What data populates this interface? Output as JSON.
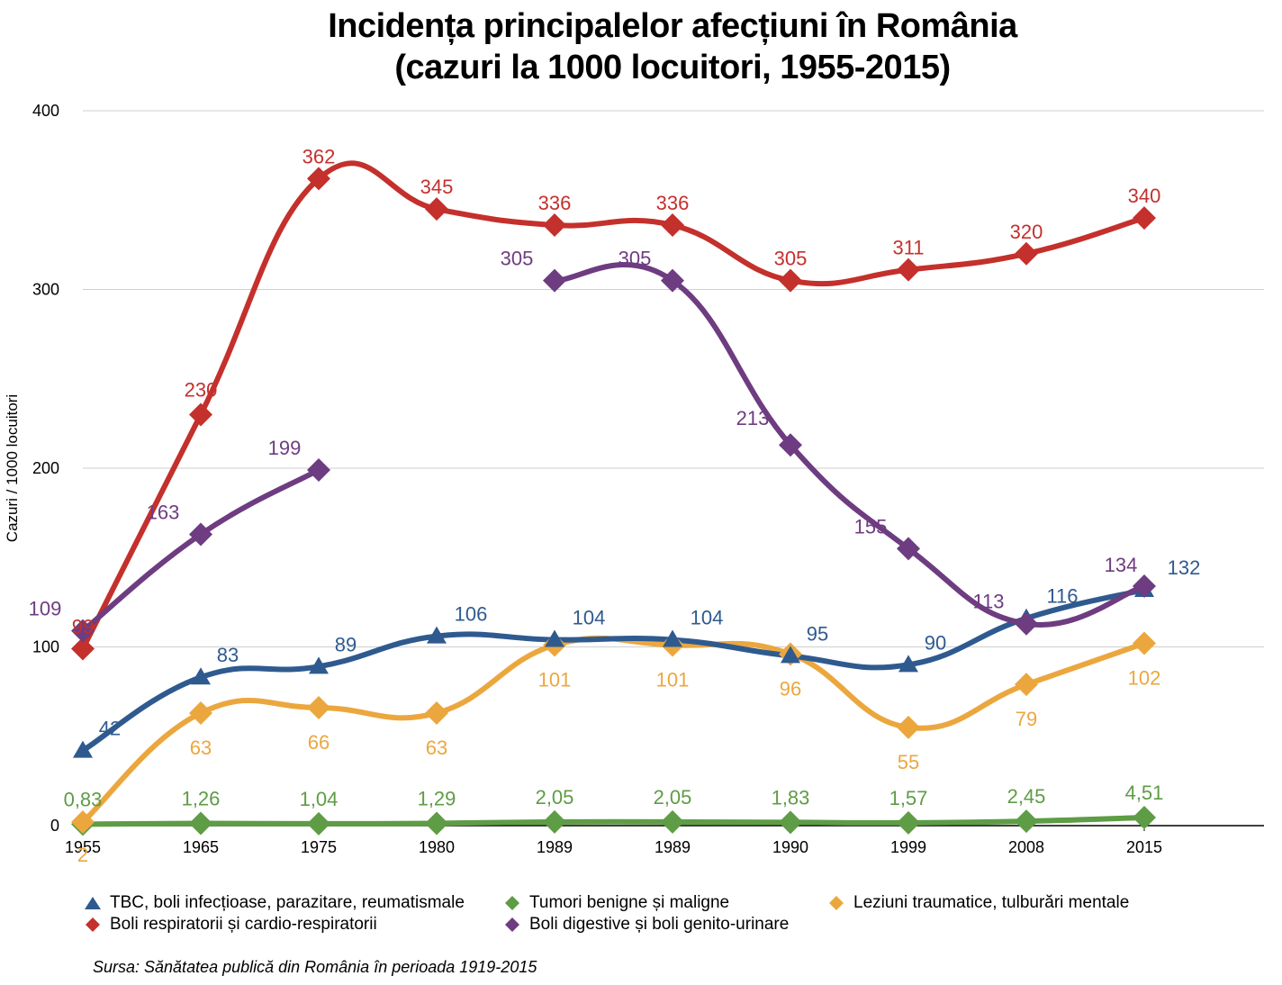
{
  "chart_data": {
    "type": "line",
    "title": "Incidența principalelor afecțiuni în România",
    "subtitle": "(cazuri la 1000 locuitori, 1955-2015)",
    "xlabel": "",
    "ylabel": "Cazuri / 1000 locuitori",
    "categories": [
      "1955",
      "1965",
      "1975",
      "1980",
      "1989",
      "1989",
      "1990",
      "1999",
      "2008",
      "2015"
    ],
    "ylim": [
      0,
      400
    ],
    "yticks": [
      0,
      100,
      200,
      300,
      400
    ],
    "ytick_labels": [
      "0",
      "100",
      "200",
      "300",
      "400"
    ],
    "grid": true,
    "legend_position": "bottom",
    "series": [
      {
        "name": "TBC, boli infecțioase, parazitare, reumatismale",
        "color": "#2f5a8f",
        "marker": "triangle",
        "values": [
          42,
          83,
          89,
          106,
          104,
          104,
          95,
          90,
          116,
          132
        ],
        "labels": [
          "42",
          "83",
          "89",
          "106",
          "104",
          "104",
          "95",
          "90",
          "116",
          "132"
        ]
      },
      {
        "name": "Tumori benigne și maligne",
        "color": "#5e9c45",
        "marker": "diamond",
        "values": [
          0.83,
          1.26,
          1.04,
          1.29,
          2.05,
          2.05,
          1.83,
          1.57,
          2.45,
          4.51
        ],
        "labels": [
          "0,83",
          "1,26",
          "1,04",
          "1,29",
          "2,05",
          "2,05",
          "1,83",
          "1,57",
          "2,45",
          "4,51"
        ]
      },
      {
        "name": "Leziuni traumatice, tulburări mentale",
        "color": "#eba73e",
        "marker": "diamond",
        "values": [
          2,
          63,
          66,
          63,
          101,
          101,
          96,
          55,
          79,
          102
        ],
        "labels": [
          "2",
          "63",
          "66",
          "63",
          "101",
          "101",
          "96",
          "55",
          "79",
          "102"
        ]
      },
      {
        "name": "Boli respiratorii și cardio-respiratorii",
        "color": "#c4302c",
        "marker": "diamond",
        "values": [
          99,
          230,
          362,
          345,
          336,
          336,
          305,
          311,
          320,
          340
        ],
        "labels": [
          "99",
          "230",
          "362",
          "345",
          "336",
          "336",
          "305",
          "311",
          "320",
          "340"
        ]
      },
      {
        "name": "Boli digestive și boli genito-urinare",
        "color": "#6e3c81",
        "marker": "diamond",
        "values": [
          109,
          163,
          199,
          null,
          305,
          305,
          213,
          155,
          113,
          134
        ],
        "labels": [
          "109",
          "163",
          "199",
          null,
          "305",
          "305",
          "213",
          "155",
          "113",
          "134"
        ]
      }
    ],
    "source": "Sursa: Sănătatea publică din România în perioada 1919-2015"
  }
}
